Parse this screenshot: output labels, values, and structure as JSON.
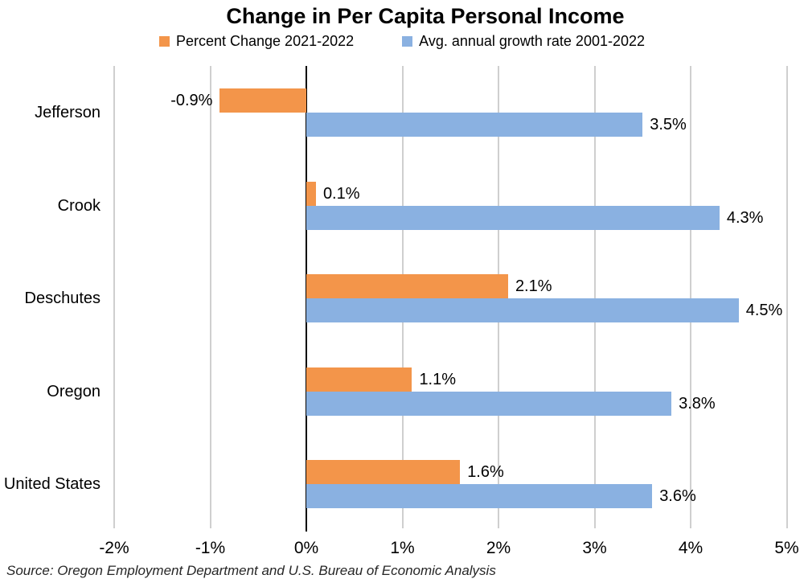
{
  "chart_data": {
    "type": "bar",
    "orientation": "horizontal",
    "title": "Change in Per Capita Personal Income",
    "categories": [
      "Jefferson",
      "Crook",
      "Deschutes",
      "Oregon",
      "United States"
    ],
    "series": [
      {
        "name": "Percent Change 2021-2022",
        "color": "#F3954A",
        "values": [
          -0.9,
          0.1,
          2.1,
          1.1,
          1.6
        ],
        "labels": [
          "-0.9%",
          "0.1%",
          "2.1%",
          "1.1%",
          "1.6%"
        ]
      },
      {
        "name": "Avg. annual growth rate 2001-2022",
        "color": "#8AB1E1",
        "values": [
          3.5,
          4.3,
          4.5,
          3.8,
          3.6
        ],
        "labels": [
          "3.5%",
          "4.3%",
          "4.5%",
          "3.8%",
          "3.6%"
        ]
      }
    ],
    "x_axis": {
      "min": -2,
      "max": 5,
      "tick_values": [
        -2,
        -1,
        0,
        1,
        2,
        3,
        4,
        5
      ],
      "tick_labels": [
        "-2%",
        "-1%",
        "0%",
        "1%",
        "2%",
        "3%",
        "4%",
        "5%"
      ]
    },
    "grid": true,
    "gridline_color": "#cfcfcf",
    "zero_line_color": "#000000",
    "legend_position": "top",
    "source": "Source: Oregon Employment Department and U.S. Bureau of Economic Analysis"
  }
}
